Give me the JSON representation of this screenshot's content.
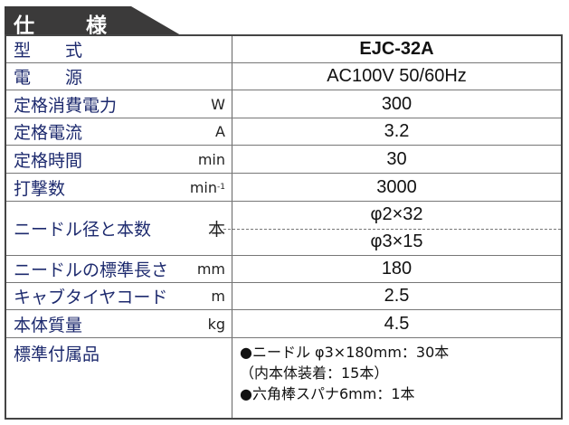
{
  "header": {
    "title_1": "仕",
    "title_2": "様"
  },
  "rows": [
    {
      "label": "型　　式",
      "unit": "",
      "value": "EJC-32A"
    },
    {
      "label": "電　　源",
      "unit": "",
      "value": "AC100V 50/60Hz"
    },
    {
      "label": "定格消費電力",
      "unit": "W",
      "value": "300"
    },
    {
      "label": "定格電流",
      "unit": "A",
      "value": "3.2"
    },
    {
      "label": "定格時間",
      "unit": "min",
      "value": "30"
    },
    {
      "label": "打撃数",
      "unit": "min",
      "unit_sup": "-1",
      "value": "3000"
    },
    {
      "label": "ニードル径と本数",
      "unit": "本",
      "value": "φ2×32",
      "value2": "φ3×15"
    },
    {
      "label": "ニードルの標準長さ",
      "unit": "mm",
      "value": "180"
    },
    {
      "label": "キャブタイヤコード",
      "unit": "m",
      "value": "2.5"
    },
    {
      "label": "本体質量",
      "unit": "kg",
      "value": "4.5"
    }
  ],
  "accessories": {
    "label": "標準付属品",
    "items": [
      "●ニードル φ3×180mm：30本",
      "（内本体装着：15本）",
      "●六角棒スパナ6mm：1本"
    ]
  }
}
